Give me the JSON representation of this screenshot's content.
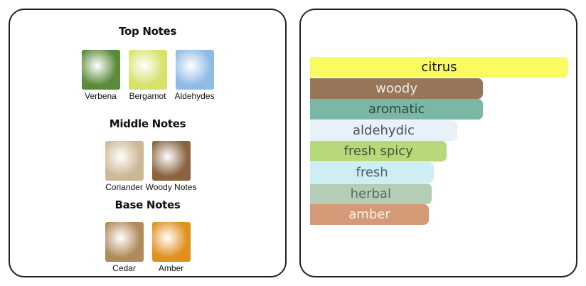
{
  "pyramid": {
    "top": {
      "title": "Top Notes",
      "notes": [
        {
          "label": "Verbena",
          "icon": "verbena-leaves-image",
          "color": "#5b8a3a"
        },
        {
          "label": "Bergamot",
          "icon": "bergamot-fruit-image",
          "color": "#d6e26a"
        },
        {
          "label": "Aldehydes",
          "icon": "sky-clouds-image",
          "color": "#8fbbe6"
        }
      ]
    },
    "middle": {
      "title": "Middle Notes",
      "notes": [
        {
          "label": "Coriander",
          "icon": "coriander-seeds-image",
          "color": "#cdb896"
        },
        {
          "label": "Woody Notes",
          "icon": "wood-image",
          "color": "#8a6440"
        }
      ]
    },
    "base": {
      "title": "Base Notes",
      "notes": [
        {
          "label": "Cedar",
          "icon": "cedar-stump-image",
          "color": "#b08a5a"
        },
        {
          "label": "Amber",
          "icon": "amber-resin-image",
          "color": "#e0901c"
        }
      ]
    }
  },
  "accords": [
    {
      "label": "citrus",
      "strength": 100,
      "color": "#f9fb60",
      "text_color": "#111111"
    },
    {
      "label": "woody",
      "strength": 67,
      "color": "#98765a",
      "text_color": "#f2eee8"
    },
    {
      "label": "aromatic",
      "strength": 67,
      "color": "#7bb7a6",
      "text_color": "#2f4a44"
    },
    {
      "label": "aldehydic",
      "strength": 57,
      "color": "#e9f1f8",
      "text_color": "#4a5058"
    },
    {
      "label": "fresh spicy",
      "strength": 53,
      "color": "#b7d97a",
      "text_color": "#46553a"
    },
    {
      "label": "fresh",
      "strength": 48,
      "color": "#cdeef4",
      "text_color": "#55606a"
    },
    {
      "label": "herbal",
      "strength": 47,
      "color": "#b5cdb7",
      "text_color": "#5a6a5c"
    },
    {
      "label": "amber",
      "strength": 46,
      "color": "#d49a78",
      "text_color": "#fbf1ea"
    }
  ]
}
